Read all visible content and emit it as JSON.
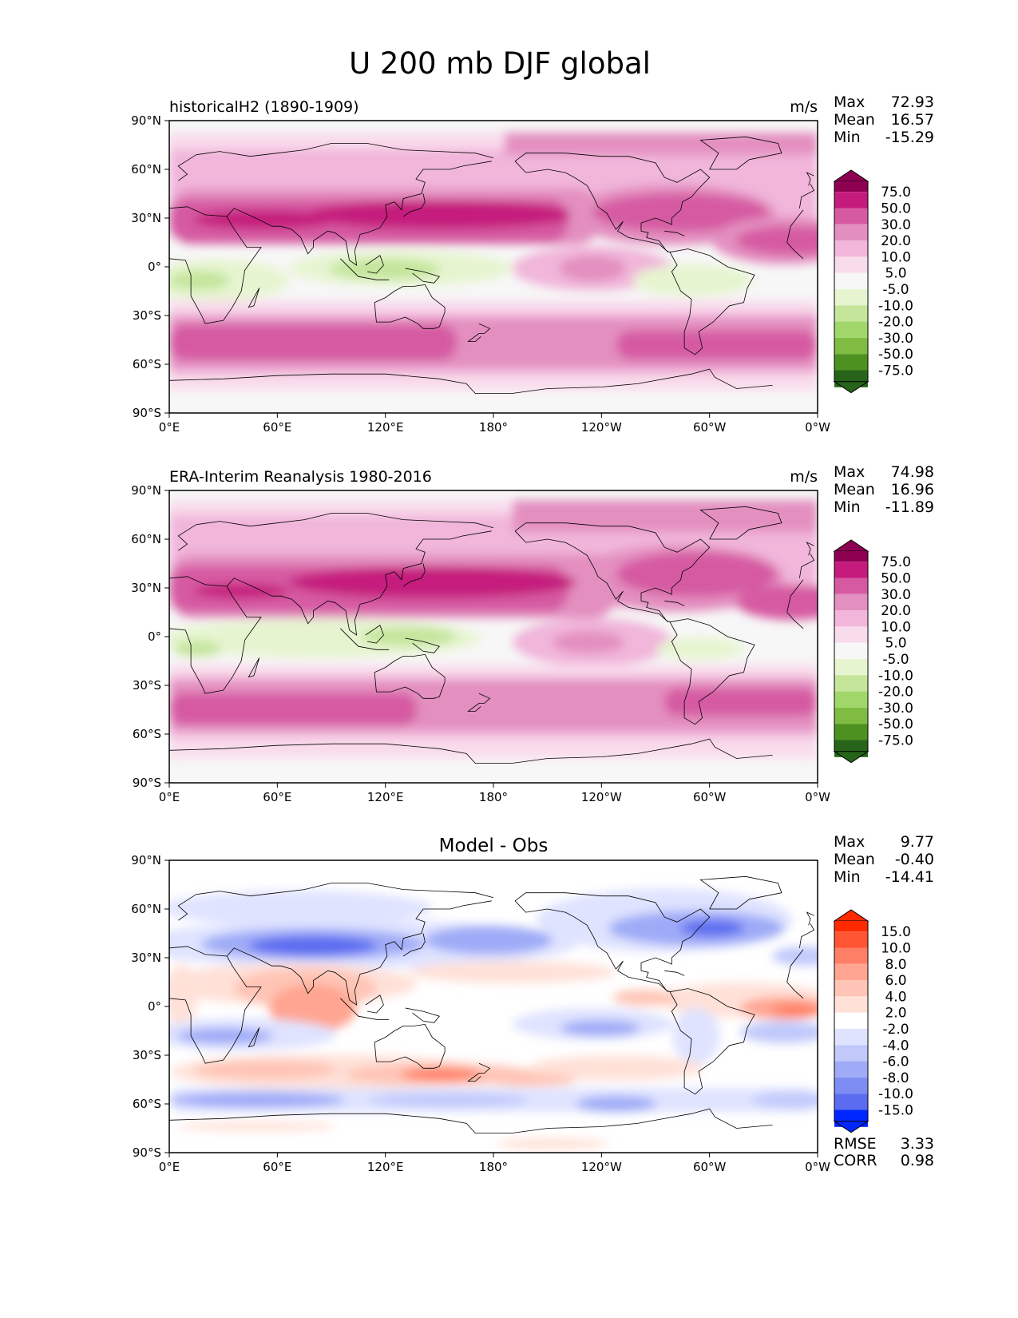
{
  "figure_title": "U 200 mb DJF global",
  "chart_data": [
    {
      "type": "heatmap",
      "subtype": "filled-contour-map",
      "title": "historicalH2 (1890-1909)",
      "units": "m/s",
      "stats": [
        {
          "label": "Max",
          "value": "72.93"
        },
        {
          "label": "Mean",
          "value": "16.57"
        },
        {
          "label": "Min",
          "value": "-15.29"
        }
      ],
      "colorbar": {
        "levels": [
          "75.0",
          "50.0",
          "30.0",
          "20.0",
          "10.0",
          "5.0",
          "-5.0",
          "-10.0",
          "-20.0",
          "-30.0",
          "-50.0",
          "-75.0"
        ],
        "colors": [
          "#8e0152",
          "#c51b7d",
          "#d65aa2",
          "#e38fc0",
          "#f1b6da",
          "#f9dcec",
          "#f7f7f7",
          "#e6f5d0",
          "#c5e59b",
          "#a1d76a",
          "#7fbc41",
          "#4d9221",
          "#276419"
        ]
      },
      "field_features": [
        {
          "lon": 145,
          "lat": 30,
          "value": 72.93
        },
        {
          "lon": 300,
          "lat": 30,
          "value": 45
        },
        {
          "lon": 90,
          "lat": -45,
          "value": 45
        },
        {
          "lon": 20,
          "lat": -10,
          "value": -15.29
        },
        {
          "lon": 125,
          "lat": 0,
          "value": -12
        }
      ],
      "x_ticks": [
        "0°E",
        "60°E",
        "120°E",
        "180°",
        "120°W",
        "60°W",
        "0°W"
      ],
      "y_ticks": [
        "90°N",
        "60°N",
        "30°N",
        "0°",
        "30°S",
        "60°S",
        "90°S"
      ]
    },
    {
      "type": "heatmap",
      "subtype": "filled-contour-map",
      "title": "ERA-Interim Reanalysis 1980-2016",
      "units": "m/s",
      "stats": [
        {
          "label": "Max",
          "value": "74.98"
        },
        {
          "label": "Mean",
          "value": "16.96"
        },
        {
          "label": "Min",
          "value": "-11.89"
        }
      ],
      "colorbar": {
        "levels": [
          "75.0",
          "50.0",
          "30.0",
          "20.0",
          "10.0",
          "5.0",
          "-5.0",
          "-10.0",
          "-20.0",
          "-30.0",
          "-50.0",
          "-75.0"
        ],
        "colors": [
          "#8e0152",
          "#c51b7d",
          "#d65aa2",
          "#e38fc0",
          "#f1b6da",
          "#f9dcec",
          "#f7f7f7",
          "#e6f5d0",
          "#c5e59b",
          "#a1d76a",
          "#7fbc41",
          "#4d9221",
          "#276419"
        ]
      },
      "field_features": [
        {
          "lon": 150,
          "lat": 30,
          "value": 74.98
        },
        {
          "lon": 290,
          "lat": 35,
          "value": 45
        },
        {
          "lon": 40,
          "lat": -45,
          "value": 45
        },
        {
          "lon": 20,
          "lat": -5,
          "value": -11.89
        },
        {
          "lon": 125,
          "lat": 0,
          "value": -10
        }
      ],
      "x_ticks": [
        "0°E",
        "60°E",
        "120°E",
        "180°",
        "120°W",
        "60°W",
        "0°W"
      ],
      "y_ticks": [
        "90°N",
        "60°N",
        "30°N",
        "0°",
        "30°S",
        "60°S",
        "90°S"
      ]
    },
    {
      "type": "heatmap",
      "subtype": "filled-contour-map",
      "title": "Model - Obs",
      "units": "",
      "stats": [
        {
          "label": "Max",
          "value": "9.77"
        },
        {
          "label": "Mean",
          "value": "-0.40"
        },
        {
          "label": "Min",
          "value": "-14.41"
        }
      ],
      "extra_stats": [
        {
          "label": "RMSE",
          "value": "3.33"
        },
        {
          "label": "CORR",
          "value": "0.98"
        }
      ],
      "colorbar": {
        "levels": [
          "15.0",
          "10.0",
          "8.0",
          "6.0",
          "4.0",
          "2.0",
          "-2.0",
          "-4.0",
          "-6.0",
          "-8.0",
          "-10.0",
          "-15.0"
        ],
        "colors": [
          "#ff2a00",
          "#ff5533",
          "#ff7f66",
          "#ffa591",
          "#ffc4b5",
          "#ffe1d8",
          "#ffffff",
          "#dfe3ff",
          "#c1c9fb",
          "#9fabf7",
          "#7d8df3",
          "#5b6cf0",
          "#0027ff"
        ]
      },
      "field_features": [
        {
          "lon": 75,
          "lat": 40,
          "value": -14.41
        },
        {
          "lon": 290,
          "lat": 42,
          "value": -10
        },
        {
          "lon": 80,
          "lat": 20,
          "value": 8
        },
        {
          "lon": 345,
          "lat": 5,
          "value": 9.77
        },
        {
          "lon": 140,
          "lat": -35,
          "value": 6
        },
        {
          "lon": 50,
          "lat": -60,
          "value": -6
        }
      ],
      "x_ticks": [
        "0°E",
        "60°E",
        "120°E",
        "180°",
        "120°W",
        "60°W",
        "0°W"
      ],
      "y_ticks": [
        "90°N",
        "60°N",
        "30°N",
        "0°",
        "30°S",
        "60°S",
        "90°S"
      ]
    }
  ]
}
